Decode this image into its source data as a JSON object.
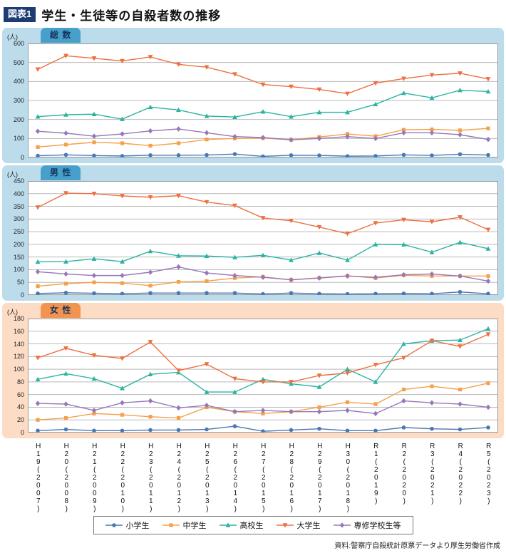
{
  "title": {
    "tag": "図表1",
    "text": "学生・生徒等の自殺者数の推移"
  },
  "source": "資料:警察庁自殺統計原票データより厚生労働省作成",
  "x_labels": [
    "H19(2007)",
    "H20(2008)",
    "H21(2009)",
    "H22(2010)",
    "H23(2011)",
    "H24(2012)",
    "H25(2013)",
    "H26(2014)",
    "H27(2015)",
    "H28(2016)",
    "H29(2017)",
    "H30(2018)",
    "R1(2019)",
    "R2(2020)",
    "R3(2021)",
    "R4(2022)",
    "R5(2023)"
  ],
  "legend": [
    {
      "key": "elementary",
      "label": "小学生",
      "color": "#4a78b5",
      "marker": "circle"
    },
    {
      "key": "junior-high",
      "label": "中学生",
      "color": "#f5a04a",
      "marker": "square"
    },
    {
      "key": "high-school",
      "label": "高校生",
      "color": "#2cb3a2",
      "marker": "triangle"
    },
    {
      "key": "university",
      "label": "大学生",
      "color": "#ec7040",
      "marker": "triangle-down"
    },
    {
      "key": "vocational",
      "label": "専修学校生等",
      "color": "#9678b8",
      "marker": "diamond"
    }
  ],
  "chart_data": [
    {
      "type": "line",
      "key": "total",
      "title": "総 数",
      "unit": "(人)",
      "ylim": [
        0,
        600
      ],
      "ytick": 100,
      "grid": true,
      "panel_bg": "#bcdcec",
      "tab_bg": "#46a0cb",
      "series": [
        {
          "key": "elementary",
          "name": "小学生",
          "values": [
            9,
            14,
            10,
            8,
            12,
            12,
            13,
            18,
            6,
            12,
            11,
            7,
            8,
            14,
            11,
            17,
            13
          ]
        },
        {
          "key": "junior-high",
          "name": "中学生",
          "values": [
            55,
            68,
            80,
            75,
            62,
            75,
            95,
            100,
            102,
            93,
            108,
            124,
            112,
            146,
            148,
            143,
            153
          ]
        },
        {
          "key": "high-school",
          "name": "高校生",
          "values": [
            215,
            225,
            228,
            202,
            265,
            250,
            218,
            213,
            241,
            215,
            238,
            238,
            280,
            339,
            314,
            354,
            347
          ]
        },
        {
          "key": "university",
          "name": "大学生",
          "values": [
            464,
            535,
            522,
            508,
            529,
            490,
            475,
            438,
            384,
            373,
            358,
            336,
            391,
            415,
            434,
            443,
            413
          ]
        },
        {
          "key": "vocational",
          "name": "専修学校生等",
          "values": [
            138,
            128,
            112,
            124,
            140,
            150,
            130,
            110,
            105,
            93,
            100,
            110,
            100,
            130,
            130,
            120,
            95
          ]
        }
      ]
    },
    {
      "type": "line",
      "key": "male",
      "title": "男 性",
      "unit": "(人)",
      "ylim": [
        0,
        450
      ],
      "ytick": 50,
      "grid": true,
      "panel_bg": "#bcdcec",
      "tab_bg": "#46a0cb",
      "series": [
        {
          "key": "elementary",
          "name": "小学生",
          "values": [
            6,
            9,
            7,
            5,
            8,
            8,
            8,
            8,
            4,
            8,
            5,
            4,
            5,
            6,
            5,
            12,
            5
          ]
        },
        {
          "key": "junior-high",
          "name": "中学生",
          "values": [
            35,
            45,
            50,
            47,
            37,
            52,
            55,
            67,
            72,
            60,
            68,
            76,
            67,
            78,
            75,
            75,
            75
          ]
        },
        {
          "key": "high-school",
          "name": "高校生",
          "values": [
            131,
            132,
            143,
            132,
            173,
            155,
            154,
            149,
            157,
            138,
            166,
            138,
            200,
            199,
            169,
            208,
            183
          ]
        },
        {
          "key": "university",
          "name": "大学生",
          "values": [
            346,
            402,
            400,
            391,
            386,
            392,
            367,
            353,
            304,
            293,
            268,
            242,
            284,
            297,
            289,
            307,
            258
          ]
        },
        {
          "key": "vocational",
          "name": "専修学校生等",
          "values": [
            92,
            83,
            77,
            77,
            90,
            111,
            87,
            77,
            70,
            60,
            67,
            75,
            70,
            80,
            83,
            75,
            55
          ]
        }
      ]
    },
    {
      "type": "line",
      "key": "female",
      "title": "女 性",
      "unit": "(人)",
      "ylim": [
        0,
        180
      ],
      "ytick": 20,
      "grid": true,
      "panel_bg": "#fcdcc4",
      "tab_bg": "#f29350",
      "series": [
        {
          "key": "elementary",
          "name": "小学生",
          "values": [
            3,
            5,
            3,
            3,
            4,
            4,
            5,
            10,
            2,
            4,
            6,
            3,
            3,
            8,
            6,
            5,
            8
          ]
        },
        {
          "key": "junior-high",
          "name": "中学生",
          "values": [
            20,
            23,
            30,
            28,
            25,
            23,
            40,
            33,
            30,
            33,
            40,
            48,
            45,
            68,
            73,
            68,
            78
          ]
        },
        {
          "key": "high-school",
          "name": "高校生",
          "values": [
            84,
            93,
            85,
            70,
            92,
            95,
            64,
            64,
            84,
            77,
            72,
            100,
            80,
            140,
            145,
            146,
            164
          ]
        },
        {
          "key": "university",
          "name": "大学生",
          "values": [
            118,
            133,
            122,
            117,
            143,
            98,
            108,
            85,
            80,
            80,
            90,
            94,
            107,
            118,
            145,
            136,
            155
          ]
        },
        {
          "key": "vocational",
          "name": "専修学校生等",
          "values": [
            46,
            45,
            35,
            47,
            50,
            39,
            43,
            33,
            35,
            33,
            33,
            35,
            30,
            50,
            47,
            45,
            40
          ]
        }
      ]
    }
  ]
}
